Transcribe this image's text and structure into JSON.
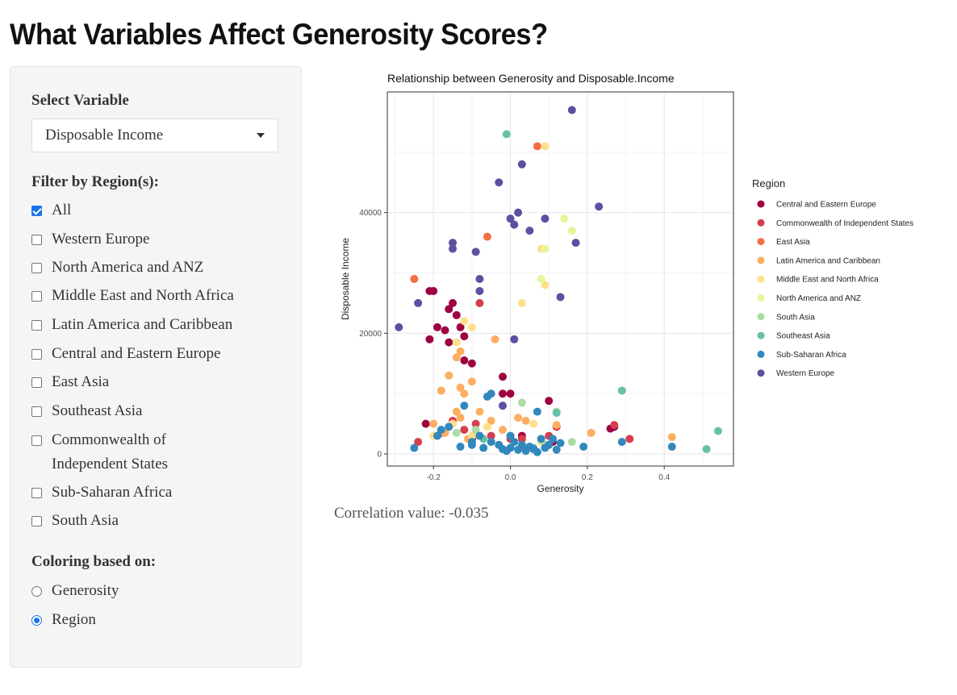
{
  "page": {
    "title": "What Variables Affect Generosity Scores?"
  },
  "sidebar": {
    "select_label": "Select Variable",
    "select_value": "Disposable Income",
    "filter_label": "Filter by Region(s):",
    "regions": [
      {
        "label": "All",
        "checked": true
      },
      {
        "label": "Western Europe",
        "checked": false
      },
      {
        "label": "North America and ANZ",
        "checked": false
      },
      {
        "label": "Middle East and North Africa",
        "checked": false
      },
      {
        "label": "Latin America and Caribbean",
        "checked": false
      },
      {
        "label": "Central and Eastern Europe",
        "checked": false
      },
      {
        "label": "East Asia",
        "checked": false
      },
      {
        "label": "Southeast Asia",
        "checked": false
      },
      {
        "label": "Commonwealth of Independent States",
        "checked": false
      },
      {
        "label": "Sub-Saharan Africa",
        "checked": false
      },
      {
        "label": "South Asia",
        "checked": false
      }
    ],
    "coloring_label": "Coloring based on:",
    "coloring_options": [
      {
        "label": "Generosity",
        "checked": false
      },
      {
        "label": "Region",
        "checked": true
      }
    ]
  },
  "correlation_text": "Correlation value: -0.035",
  "colors": {
    "Central and Eastern Europe": "#9E0142",
    "Commonwealth of Independent States": "#D53E4F",
    "East Asia": "#F46D43",
    "Latin America and Caribbean": "#FDAE61",
    "Middle East and North Africa": "#FEE08B",
    "North America and ANZ": "#E6F598",
    "South Asia": "#ABDDA4",
    "Southeast Asia": "#66C2A5",
    "Sub-Saharan Africa": "#3288BD",
    "Western Europe": "#5E4FA2"
  },
  "chart_data": {
    "type": "scatter",
    "title": "Relationship between Generosity and  Disposable.Income",
    "xlabel": "Generosity",
    "ylabel": "Disposable Income",
    "xlim": [
      -0.32,
      0.58
    ],
    "ylim": [
      -2000,
      60000
    ],
    "xticks": [
      -0.2,
      0.0,
      0.2,
      0.4
    ],
    "xtick_labels": [
      "-0.2",
      "0.0",
      "0.2",
      "0.4"
    ],
    "yticks": [
      0,
      20000,
      40000
    ],
    "ytick_labels": [
      "0",
      "20000",
      "40000"
    ],
    "grid": true,
    "legend_title": "Region",
    "legend_position": "right",
    "series": [
      {
        "name": "Central and Eastern Europe",
        "points": [
          [
            -0.21,
            27000
          ],
          [
            -0.2,
            27000
          ],
          [
            -0.16,
            24000
          ],
          [
            -0.15,
            25000
          ],
          [
            -0.14,
            23000
          ],
          [
            -0.19,
            21000
          ],
          [
            -0.17,
            20500
          ],
          [
            -0.13,
            21000
          ],
          [
            -0.12,
            19500
          ],
          [
            -0.21,
            19000
          ],
          [
            -0.16,
            18500
          ],
          [
            -0.12,
            15500
          ],
          [
            -0.1,
            15000
          ],
          [
            -0.02,
            12800
          ],
          [
            -0.02,
            10000
          ],
          [
            0.0,
            10000
          ],
          [
            0.1,
            8800
          ],
          [
            -0.1,
            2500
          ],
          [
            0.11,
            2000
          ],
          [
            -0.22,
            5000
          ],
          [
            0.03,
            3000
          ],
          [
            0.27,
            4500
          ],
          [
            0.26,
            4200
          ]
        ]
      },
      {
        "name": "Commonwealth of Independent States",
        "points": [
          [
            -0.08,
            25000
          ],
          [
            -0.15,
            5500
          ],
          [
            -0.12,
            4000
          ],
          [
            -0.09,
            5000
          ],
          [
            -0.05,
            3000
          ],
          [
            0.0,
            2500
          ],
          [
            0.1,
            3000
          ],
          [
            0.03,
            2500
          ],
          [
            0.31,
            2500
          ],
          [
            0.12,
            4500
          ],
          [
            -0.24,
            2000
          ],
          [
            -0.18,
            3500
          ],
          [
            0.27,
            4800
          ]
        ]
      },
      {
        "name": "East Asia",
        "points": [
          [
            0.07,
            51000
          ],
          [
            -0.06,
            36000
          ],
          [
            -0.25,
            29000
          ]
        ]
      },
      {
        "name": "Latin America and Caribbean",
        "points": [
          [
            -0.13,
            17000
          ],
          [
            -0.14,
            16000
          ],
          [
            -0.04,
            19000
          ],
          [
            -0.16,
            13000
          ],
          [
            -0.13,
            11000
          ],
          [
            -0.18,
            10500
          ],
          [
            -0.12,
            10000
          ],
          [
            -0.1,
            12000
          ],
          [
            -0.14,
            7000
          ],
          [
            -0.08,
            7000
          ],
          [
            -0.2,
            5000
          ],
          [
            -0.17,
            3500
          ],
          [
            -0.11,
            2500
          ],
          [
            -0.05,
            5500
          ],
          [
            0.02,
            6000
          ],
          [
            0.04,
            5500
          ],
          [
            0.12,
            4800
          ],
          [
            0.21,
            3500
          ],
          [
            0.42,
            2800
          ],
          [
            -0.02,
            4000
          ],
          [
            -0.13,
            6000
          ]
        ]
      },
      {
        "name": "Middle East and North Africa",
        "points": [
          [
            0.09,
            51000
          ],
          [
            0.08,
            29000
          ],
          [
            0.09,
            28000
          ],
          [
            0.03,
            25000
          ],
          [
            -0.12,
            22000
          ],
          [
            -0.1,
            21000
          ],
          [
            -0.14,
            18500
          ],
          [
            0.08,
            34000
          ],
          [
            -0.2,
            3000
          ],
          [
            -0.15,
            5000
          ],
          [
            -0.1,
            3000
          ],
          [
            -0.06,
            4500
          ],
          [
            0.06,
            5000
          ],
          [
            0.08,
            2000
          ]
        ]
      },
      {
        "name": "North America and ANZ",
        "points": [
          [
            0.14,
            39000
          ],
          [
            0.16,
            37000
          ],
          [
            0.09,
            34000
          ],
          [
            0.08,
            29000
          ]
        ]
      },
      {
        "name": "South Asia",
        "points": [
          [
            -0.09,
            4000
          ],
          [
            0.03,
            8500
          ],
          [
            0.16,
            2000
          ],
          [
            0.09,
            1500
          ],
          [
            0.12,
            7000
          ],
          [
            -0.14,
            3500
          ]
        ]
      },
      {
        "name": "Southeast Asia",
        "points": [
          [
            -0.01,
            53000
          ],
          [
            0.29,
            10500
          ],
          [
            0.12,
            6800
          ],
          [
            0.54,
            3800
          ],
          [
            0.51,
            800
          ],
          [
            0.06,
            1000
          ],
          [
            -0.07,
            2500
          ]
        ]
      },
      {
        "name": "Sub-Saharan Africa",
        "points": [
          [
            -0.25,
            1000
          ],
          [
            -0.19,
            3000
          ],
          [
            -0.16,
            4500
          ],
          [
            -0.13,
            1200
          ],
          [
            -0.1,
            1500
          ],
          [
            -0.08,
            3000
          ],
          [
            -0.07,
            1000
          ],
          [
            -0.06,
            9500
          ],
          [
            -0.05,
            10000
          ],
          [
            -0.05,
            2000
          ],
          [
            -0.03,
            1500
          ],
          [
            -0.02,
            800
          ],
          [
            -0.01,
            500
          ],
          [
            0.0,
            1000
          ],
          [
            0.01,
            2000
          ],
          [
            0.02,
            700
          ],
          [
            0.03,
            1500
          ],
          [
            0.04,
            500
          ],
          [
            0.05,
            1200
          ],
          [
            0.06,
            800
          ],
          [
            0.07,
            300
          ],
          [
            0.08,
            2500
          ],
          [
            0.09,
            1000
          ],
          [
            0.1,
            1500
          ],
          [
            0.12,
            700
          ],
          [
            0.13,
            1800
          ],
          [
            0.19,
            1200
          ],
          [
            0.29,
            2000
          ],
          [
            0.42,
            1200
          ],
          [
            0.07,
            7000
          ],
          [
            -0.1,
            2000
          ],
          [
            -0.18,
            4000
          ],
          [
            -0.12,
            8000
          ],
          [
            0.0,
            3000
          ],
          [
            0.11,
            2500
          ]
        ]
      },
      {
        "name": "Western Europe",
        "points": [
          [
            0.16,
            57000
          ],
          [
            0.03,
            48000
          ],
          [
            -0.03,
            45000
          ],
          [
            0.23,
            41000
          ],
          [
            0.0,
            39000
          ],
          [
            0.02,
            40000
          ],
          [
            0.09,
            39000
          ],
          [
            0.01,
            38000
          ],
          [
            0.05,
            37000
          ],
          [
            0.17,
            35000
          ],
          [
            -0.15,
            35000
          ],
          [
            -0.15,
            34000
          ],
          [
            -0.09,
            33500
          ],
          [
            -0.08,
            29000
          ],
          [
            -0.08,
            27000
          ],
          [
            0.13,
            26000
          ],
          [
            -0.24,
            25000
          ],
          [
            -0.29,
            21000
          ],
          [
            0.01,
            19000
          ],
          [
            -0.02,
            8000
          ]
        ]
      }
    ]
  }
}
